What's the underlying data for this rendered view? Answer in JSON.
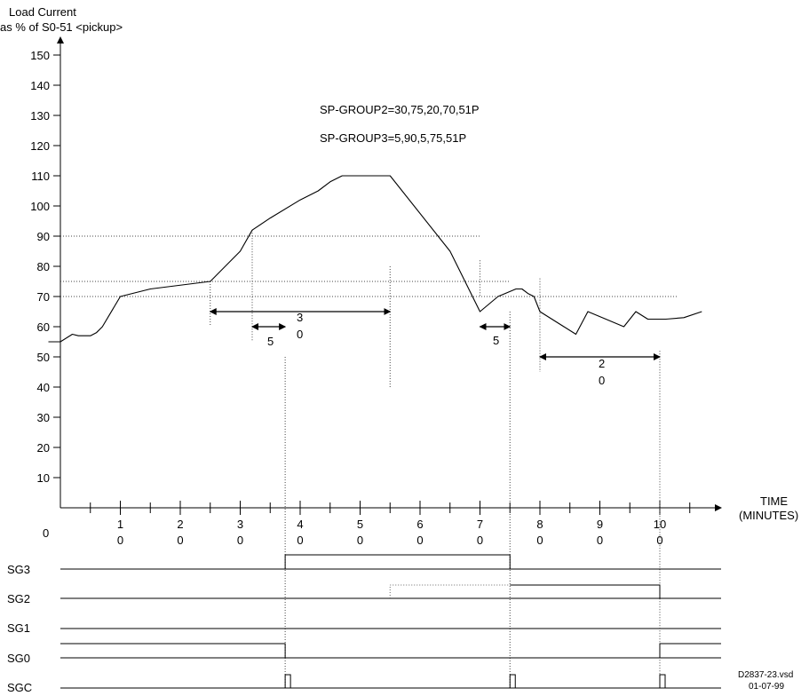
{
  "header": {
    "y_title_line1": "Load Current",
    "y_title_line2": "as % of S0-51 <pickup>"
  },
  "y_axis": {
    "ticks": [
      {
        "value": 150,
        "label": "150"
      },
      {
        "value": 140,
        "label": "140"
      },
      {
        "value": 130,
        "label": "130"
      },
      {
        "value": 120,
        "label": "120"
      },
      {
        "value": 110,
        "label": "110"
      },
      {
        "value": 100,
        "label": "100"
      },
      {
        "value": 90,
        "label": "90"
      },
      {
        "value": 80,
        "label": "80"
      },
      {
        "value": 70,
        "label": "70"
      },
      {
        "value": 60,
        "label": "60"
      },
      {
        "value": 50,
        "label": "50"
      },
      {
        "value": 40,
        "label": "40"
      },
      {
        "value": 30,
        "label": "30"
      },
      {
        "value": 20,
        "label": "20"
      },
      {
        "value": 10,
        "label": "10"
      }
    ]
  },
  "x_axis": {
    "origin_label": "0",
    "title_line1": "TIME",
    "title_line2": "(MINUTES)",
    "ticks": [
      {
        "value": 10,
        "top": "1",
        "bottom": "0"
      },
      {
        "value": 20,
        "top": "2",
        "bottom": "0"
      },
      {
        "value": 30,
        "top": "3",
        "bottom": "0"
      },
      {
        "value": 40,
        "top": "4",
        "bottom": "0"
      },
      {
        "value": 50,
        "top": "5",
        "bottom": "0"
      },
      {
        "value": 60,
        "top": "6",
        "bottom": "0"
      },
      {
        "value": 70,
        "top": "7",
        "bottom": "0"
      },
      {
        "value": 80,
        "top": "8",
        "bottom": "0"
      },
      {
        "value": 90,
        "top": "9",
        "bottom": "0"
      },
      {
        "value": 100,
        "top": "10",
        "bottom": "0"
      }
    ]
  },
  "annotations": {
    "group2": "SP-GROUP2=30,75,20,70,51P",
    "group3": "SP-GROUP3=5,90,5,75,51P",
    "span_30_top": "3",
    "span_30_bottom": "0",
    "span_5a": "5",
    "span_5b": "5",
    "span_20_top": "2",
    "span_20_bottom": "0"
  },
  "signals": {
    "sg3": "SG3",
    "sg2": "SG2",
    "sg1": "SG1",
    "sg0": "SG0",
    "sgc": "SGC"
  },
  "footer": {
    "file": "D2837-23.vsd",
    "date": "01-07-99"
  },
  "chart_data": {
    "type": "line",
    "xlabel": "TIME (MINUTES)",
    "ylabel": "Load Current as % of S0-51 <pickup>",
    "xlim": [
      0,
      105
    ],
    "ylim": [
      0,
      150
    ],
    "grid": false,
    "reference_levels": [
      90,
      75,
      70
    ],
    "series": [
      {
        "x": [
          -2,
          0,
          2,
          3,
          5,
          6,
          7,
          10,
          15,
          25,
          30,
          32,
          35,
          40,
          43,
          45,
          47,
          49,
          50,
          51,
          55,
          65,
          70,
          73,
          76,
          77,
          78,
          79,
          80,
          84,
          86,
          88,
          91,
          94,
          96,
          98,
          101,
          104,
          107
        ],
        "y": [
          55,
          55,
          57.5,
          57,
          57,
          58,
          60,
          70,
          72.5,
          75,
          85,
          92,
          96,
          102,
          105,
          108,
          110,
          110,
          110,
          110,
          110,
          85,
          65,
          70,
          72.5,
          72.5,
          71,
          70,
          65,
          60,
          57.5,
          65,
          62.5,
          60,
          65,
          62.5,
          62.5,
          63,
          65
        ]
      }
    ]
  }
}
